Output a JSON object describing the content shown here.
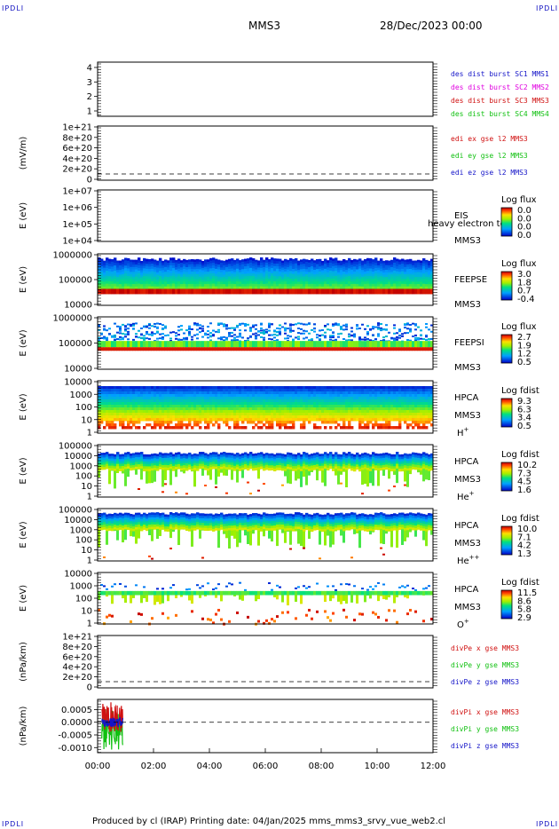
{
  "corner_labels": {
    "tl": "IPDLI",
    "tr": "IPDLI",
    "bl": "IPDLI",
    "br": "IPDLI"
  },
  "header": {
    "spacecraft": "MMS3",
    "date": "28/Dec/2023 00:00"
  },
  "footer": "Produced by cl (IRAP)   Printing date: 04/Jan/2025   mms_mms3_srvy_vue_web2.cl",
  "colors": {
    "blue": "#1414c8",
    "magenta": "#e000e0",
    "red": "#d01010",
    "green": "#10c010",
    "grid": "#000000"
  },
  "chart_data": {
    "type": "multi-panel",
    "x_ticks": [
      "00:00",
      "02:00",
      "04:00",
      "06:00",
      "08:00",
      "10:00",
      "12:00"
    ],
    "x_range_hours": [
      0,
      12
    ],
    "panels": [
      {
        "id": "burst",
        "type": "line",
        "ylabel": "",
        "y_ticks": [
          "4",
          "3",
          "2",
          "1"
        ],
        "legend": [
          {
            "text": "des dist burst SC1 MMS1",
            "color": "#1414c8"
          },
          {
            "text": "des dist burst SC2 MMS2",
            "color": "#e000e0"
          },
          {
            "text": "des dist burst SC3 MMS3",
            "color": "#d01010"
          },
          {
            "text": "des dist burst SC4 MMS4",
            "color": "#10c010"
          }
        ]
      },
      {
        "id": "edi",
        "type": "line",
        "ylabel": "(mV/m)",
        "y_ticks": [
          "1e+21",
          "8e+20",
          "6e+20",
          "4e+20",
          "2e+20",
          "0"
        ],
        "legend": [
          {
            "text": "edi ex gse l2 MMS3",
            "color": "#d01010"
          },
          {
            "text": "edi ey gse l2 MMS3",
            "color": "#10c010"
          },
          {
            "text": "edi ez gse l2 MMS3",
            "color": "#1414c8"
          }
        ]
      },
      {
        "id": "eis",
        "type": "heatmap",
        "ylabel": "E (eV)",
        "y_ticks": [
          "1e+07",
          "1e+06",
          "1e+05",
          "1e+04"
        ],
        "labels": [
          "EIS",
          "MMS3"
        ],
        "overlay_text": "heavy electron to",
        "colorbar_title": "Log flux",
        "colorbar_ticks": [
          "0.0",
          "0.0",
          "0.0",
          "0.0"
        ]
      },
      {
        "id": "feepse",
        "type": "heatmap",
        "ylabel": "E (eV)",
        "y_ticks": [
          "1000000",
          "100000",
          "10000"
        ],
        "labels": [
          "FEEPSE",
          "MMS3"
        ],
        "colorbar_title": "Log flux",
        "colorbar_ticks": [
          "3.0",
          "1.8",
          "0.7",
          "-0.4"
        ]
      },
      {
        "id": "feepsi",
        "type": "heatmap",
        "ylabel": "E (eV)",
        "y_ticks": [
          "1000000",
          "100000",
          "10000"
        ],
        "labels": [
          "FEEPSI",
          "MMS3"
        ],
        "colorbar_title": "Log flux",
        "colorbar_ticks": [
          "2.7",
          "1.9",
          "1.2",
          "0.5"
        ]
      },
      {
        "id": "hpca_h",
        "type": "heatmap",
        "ylabel": "E (eV)",
        "y_ticks": [
          "10000",
          "1000",
          "100",
          "10",
          "1"
        ],
        "labels": [
          "HPCA",
          "MMS3"
        ],
        "species": "H",
        "charge": "+",
        "colorbar_title": "Log fdist",
        "colorbar_ticks": [
          "9.3",
          "6.3",
          "3.4",
          "0.5"
        ]
      },
      {
        "id": "hpca_he",
        "type": "heatmap",
        "ylabel": "E (eV)",
        "y_ticks": [
          "100000",
          "10000",
          "1000",
          "100",
          "10",
          "1"
        ],
        "labels": [
          "HPCA",
          "MMS3"
        ],
        "species": "He",
        "charge": "+",
        "colorbar_title": "Log fdist",
        "colorbar_ticks": [
          "10.2",
          "7.3",
          "4.5",
          "1.6"
        ]
      },
      {
        "id": "hpca_hepp",
        "type": "heatmap",
        "ylabel": "E (eV)",
        "y_ticks": [
          "100000",
          "10000",
          "1000",
          "100",
          "10",
          "1"
        ],
        "labels": [
          "HPCA",
          "MMS3"
        ],
        "species": "He",
        "charge": "++",
        "colorbar_title": "Log fdist",
        "colorbar_ticks": [
          "10.0",
          "7.1",
          "4.2",
          "1.3"
        ]
      },
      {
        "id": "hpca_o",
        "type": "heatmap",
        "ylabel": "E (eV)",
        "y_ticks": [
          "10000",
          "1000",
          "100",
          "10",
          "1"
        ],
        "labels": [
          "HPCA",
          "MMS3"
        ],
        "species": "O",
        "charge": "+",
        "colorbar_title": "Log fdist",
        "colorbar_ticks": [
          "11.5",
          "8.6",
          "5.8",
          "2.9"
        ]
      },
      {
        "id": "divpe",
        "type": "line",
        "ylabel": "(nPa/km)",
        "y_ticks": [
          "1e+21",
          "8e+20",
          "6e+20",
          "4e+20",
          "2e+20",
          "0"
        ],
        "legend": [
          {
            "text": "divPe x gse MMS3",
            "color": "#d01010"
          },
          {
            "text": "divPe y gse MMS3",
            "color": "#10c010"
          },
          {
            "text": "divPe z gse MMS3",
            "color": "#1414c8"
          }
        ]
      },
      {
        "id": "divpi",
        "type": "line",
        "ylabel": "(nPa/km)",
        "y_ticks": [
          "0.0005",
          "0.0000",
          "-0.0005",
          "-0.0010"
        ],
        "y_range": [
          -0.0012,
          0.0009
        ],
        "legend": [
          {
            "text": "divPi x gse MMS3",
            "color": "#d01010"
          },
          {
            "text": "divPi y gse MMS3",
            "color": "#10c010"
          },
          {
            "text": "divPi z gse MMS3",
            "color": "#1414c8"
          }
        ]
      }
    ]
  }
}
